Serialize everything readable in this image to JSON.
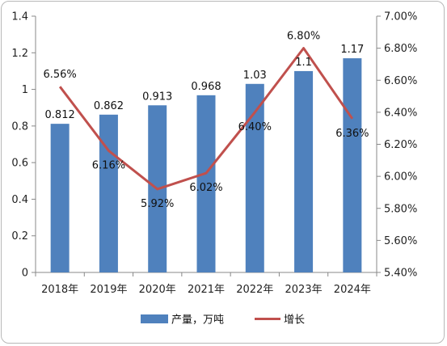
{
  "chart_data": {
    "type": "bar+line",
    "categories": [
      "2018年",
      "2019年",
      "2020年",
      "2021年",
      "2022年",
      "2023年",
      "2024年"
    ],
    "series": [
      {
        "name": "产量，万吨",
        "type": "bar",
        "axis": "left",
        "values": [
          0.812,
          0.862,
          0.913,
          0.968,
          1.03,
          1.1,
          1.17
        ],
        "labels": [
          "0.812",
          "0.862",
          "0.913",
          "0.968",
          "1.03",
          "1.1",
          "1.17"
        ],
        "color": "#4f81bd"
      },
      {
        "name": "增长",
        "type": "line",
        "axis": "right",
        "values": [
          6.56,
          6.16,
          5.92,
          6.02,
          6.4,
          6.8,
          6.36
        ],
        "labels": [
          "6.56%",
          "6.16%",
          "5.92%",
          "6.02%",
          "6.40%",
          "6.80%",
          "6.36%"
        ],
        "color": "#c0504d"
      }
    ],
    "y_left": {
      "min": 0,
      "max": 1.4,
      "ticks": [
        0,
        0.2,
        0.4,
        0.6,
        0.8,
        1,
        1.2,
        1.4
      ],
      "tick_labels": [
        "0",
        "0.2",
        "0.4",
        "0.6",
        "0.8",
        "1",
        "1.2",
        "1.4"
      ]
    },
    "y_right": {
      "min": 5.4,
      "max": 7.0,
      "ticks": [
        5.4,
        5.6,
        5.8,
        6.0,
        6.2,
        6.4,
        6.6,
        6.8,
        7.0
      ],
      "tick_labels": [
        "5.40%",
        "5.60%",
        "5.80%",
        "6.00%",
        "6.20%",
        "6.40%",
        "6.60%",
        "6.80%",
        "7.00%"
      ]
    },
    "grid": false,
    "legend_position": "bottom"
  }
}
